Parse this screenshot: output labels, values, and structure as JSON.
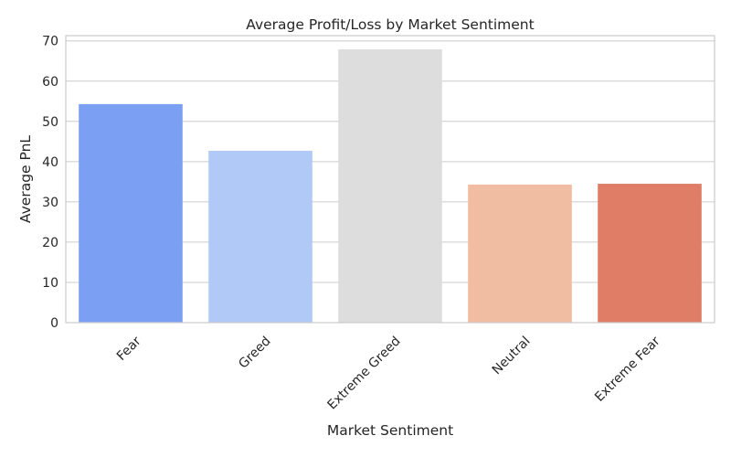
{
  "chart_data": {
    "type": "bar",
    "title": "Average Profit/Loss by Market Sentiment",
    "xlabel": "Market Sentiment",
    "ylabel": "Average PnL",
    "categories": [
      "Fear",
      "Greed",
      "Extreme Greed",
      "Neutral",
      "Extreme Fear"
    ],
    "values": [
      54.3,
      42.7,
      67.9,
      34.3,
      34.5
    ],
    "colors": [
      "#7b9ff2",
      "#b1c9f6",
      "#dddddd",
      "#f0bca2",
      "#df7d67"
    ],
    "ylim": [
      0,
      71.3
    ],
    "yticks": [
      0,
      10,
      20,
      30,
      40,
      50,
      60,
      70
    ],
    "grid": true,
    "x_tick_rotation_deg": 45
  }
}
